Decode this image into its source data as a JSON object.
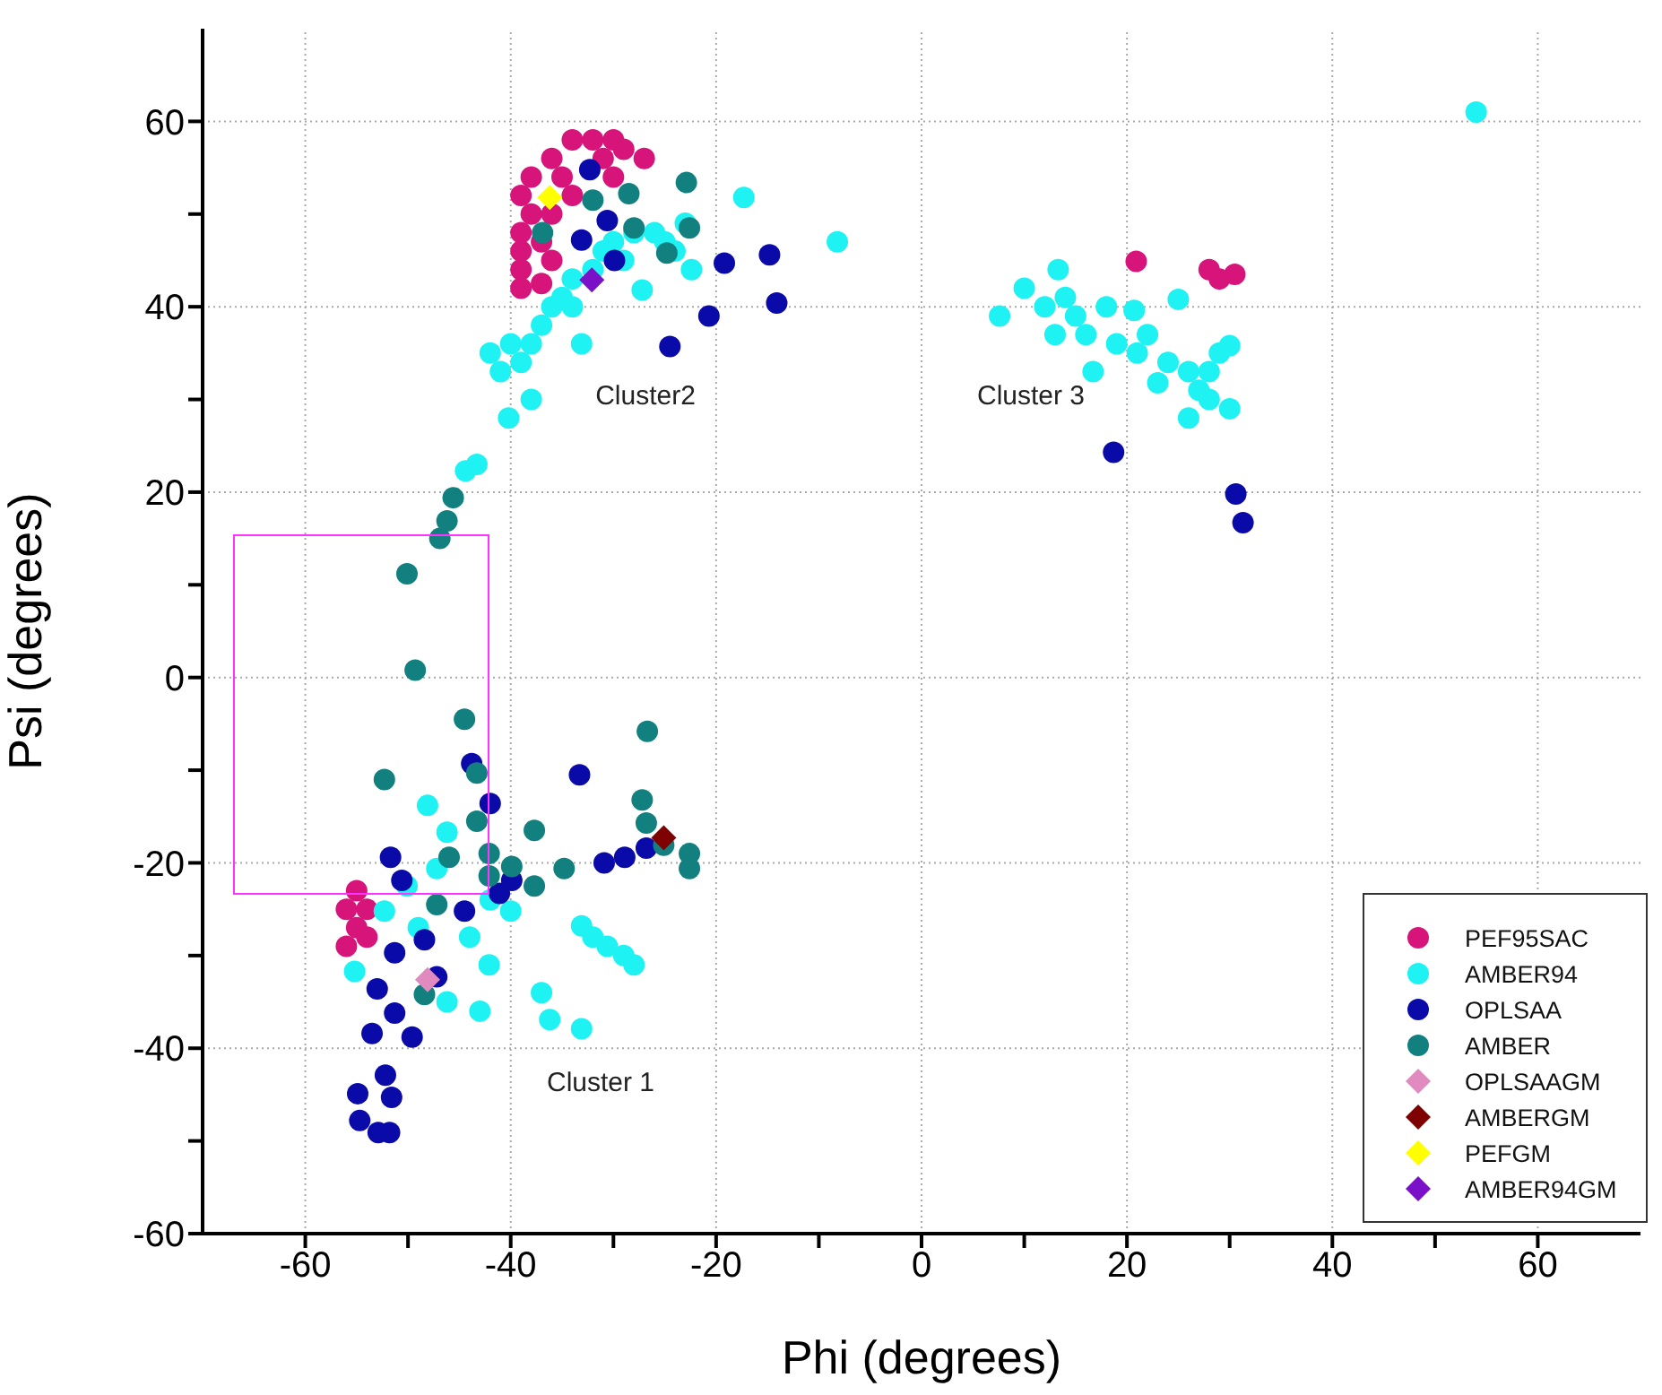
{
  "chart_data": {
    "type": "scatter",
    "xlabel": "Phi (degrees)",
    "ylabel": "Psi (degrees)",
    "xlim": [
      -70,
      70
    ],
    "ylim": [
      -60,
      70
    ],
    "xticks": [
      -60,
      {
        "value": -50,
        "label": null
      },
      -40,
      {
        "value": -30,
        "label": null
      },
      -20,
      {
        "value": -10,
        "label": null
      },
      0,
      {
        "value": 10,
        "label": null
      },
      20,
      {
        "value": 30,
        "label": null
      },
      40,
      {
        "value": 50,
        "label": null
      },
      60
    ],
    "yticks": [
      -60,
      {
        "value": -50,
        "label": null
      },
      -40,
      {
        "value": -30,
        "label": null
      },
      -20,
      {
        "value": -10,
        "label": null
      },
      0,
      {
        "value": 10,
        "label": null
      },
      20,
      {
        "value": 30,
        "label": null
      },
      40,
      {
        "value": 50,
        "label": null
      },
      60
    ],
    "grid": true,
    "legend": "bottom right",
    "marker": "circle",
    "annotations": [
      "Cluster2",
      "Cluster 3",
      "Cluster 1"
    ],
    "series": [
      {
        "name": "PEF95SAC",
        "color": "#d6147a",
        "x": [
          -34,
          -32,
          -30,
          -29,
          -27,
          -36,
          -38,
          -39,
          -38,
          -39,
          -39,
          -39,
          -39,
          -36,
          -34,
          -35,
          -30,
          -31,
          -37,
          -36,
          -37,
          -55,
          -56,
          -55,
          -56,
          -54,
          -54,
          20.9,
          28,
          30.5,
          29
        ],
        "values": [
          58,
          58,
          58,
          57,
          56,
          56,
          54,
          52,
          50,
          48,
          46,
          44,
          42,
          50,
          52,
          54,
          54,
          56,
          47,
          45,
          42.5,
          -23,
          -25,
          -27,
          -29,
          -28,
          -25,
          44.9,
          44,
          43.5,
          43
        ]
      },
      {
        "name": "AMBER94",
        "color": "#1ef2f2",
        "x": [
          -43.3,
          -44.4,
          -40.2,
          -38,
          -41,
          -42,
          -40,
          -39,
          -38,
          -37,
          -36,
          -35,
          -34,
          -34,
          -32,
          -31,
          -33.1,
          -30,
          -28,
          -26,
          -25,
          -23,
          -27.2,
          -22.4,
          -17.3,
          -8.2,
          -29,
          -24,
          7.6,
          10,
          12,
          13.3,
          14,
          15,
          16,
          13,
          16.7,
          18,
          20.7,
          19,
          21,
          22,
          23,
          24,
          25,
          26,
          26,
          27,
          28,
          29,
          30,
          30,
          28,
          54,
          -48.1,
          -46.2,
          -47.2,
          -50.1,
          -52.3,
          -55.2,
          -46.2,
          -43,
          -42.1,
          -44,
          -40,
          -42,
          -37,
          -36.2,
          -33.1,
          -33.1,
          -32,
          -30.6,
          -29,
          -28,
          -49
        ],
        "values": [
          23,
          22.3,
          28,
          30,
          33,
          35,
          36,
          34,
          36,
          38,
          40,
          41,
          40,
          43,
          44,
          46,
          36,
          47,
          48,
          48,
          47,
          49,
          41.8,
          44,
          51.8,
          47,
          45,
          46,
          39,
          42,
          40,
          44,
          41,
          39,
          37,
          37,
          33,
          40,
          39.6,
          36,
          35,
          37,
          31.8,
          34,
          40.8,
          28,
          33,
          31,
          33,
          35,
          35.8,
          29,
          30,
          61,
          -13.8,
          -16.7,
          -20.6,
          -22.5,
          -25.2,
          -31.7,
          -35,
          -36,
          -31,
          -28,
          -25.2,
          -24,
          -34,
          -36.9,
          -37.9,
          -26.8,
          -28,
          -29,
          -30,
          -31,
          -27
        ]
      },
      {
        "name": "OPLSAA",
        "color": "#0a0aa8",
        "x": [
          -32.3,
          -30.6,
          -33.1,
          -29.9,
          -19.2,
          -14.8,
          -14.1,
          -20.7,
          -24.5,
          18.7,
          30.6,
          31.3,
          -43.8,
          -33.3,
          -42,
          -51.7,
          -30.9,
          -28.9,
          -26.8,
          -48.4,
          -41.1,
          -44.5,
          -51.3,
          -47.2,
          -53,
          -51.3,
          -53.5,
          -49.6,
          -52.2,
          -54.9,
          -54.7,
          -51.8,
          -51.6,
          -52.9,
          -50.6,
          -39.9
        ],
        "values": [
          54.8,
          49.3,
          47.2,
          45,
          44.7,
          45.6,
          40.4,
          39,
          35.7,
          24.3,
          19.8,
          16.7,
          -9.3,
          -10.5,
          -13.6,
          -19.4,
          -20,
          -19.4,
          -18.4,
          -28.3,
          -23.3,
          -25.2,
          -29.7,
          -32.3,
          -33.6,
          -36.2,
          -38.4,
          -38.8,
          -42.9,
          -44.9,
          -47.8,
          -49.1,
          -45.3,
          -49.1,
          -21.9,
          -21.9
        ]
      },
      {
        "name": "AMBER",
        "color": "#138080",
        "x": [
          -50.1,
          -46.9,
          -46.2,
          -45.6,
          -36.9,
          -32,
          -28.5,
          -28,
          -22.9,
          -22.6,
          -24.8,
          -49.3,
          -44.5,
          -52.3,
          -26.7,
          -43.3,
          -43.3,
          -37.7,
          -46,
          -42.1,
          -39.9,
          -37.7,
          -34.8,
          -27.2,
          -26.8,
          -22.6,
          -22.6,
          -25.1,
          -47.2,
          -48.4,
          -42.1
        ],
        "values": [
          11.2,
          15,
          16.9,
          19.4,
          48,
          51.5,
          52.2,
          48.5,
          53.4,
          48.5,
          45.8,
          0.8,
          -4.5,
          -11,
          -5.8,
          -10.3,
          -15.5,
          -16.5,
          -19.4,
          -21.4,
          -20.4,
          -22.5,
          -20.6,
          -13.2,
          -15.7,
          -19,
          -20.6,
          -18.1,
          -24.5,
          -34.2,
          -19
        ]
      },
      {
        "name": "OPLSAAGM",
        "color": "#e08ac0",
        "marker": "diamond",
        "x": [
          -48.1
        ],
        "values": [
          -32.6
        ]
      },
      {
        "name": "AMBERGM",
        "color": "#7f0000",
        "marker": "diamond",
        "x": [
          -25.1
        ],
        "values": [
          -17.3
        ]
      },
      {
        "name": "PEFGM",
        "color": "#ffff00",
        "marker": "diamond",
        "x": [
          -36.2
        ],
        "values": [
          51.8
        ]
      },
      {
        "name": "AMBER94GM",
        "color": "#7a10c8",
        "marker": "diamond",
        "x": [
          -32.1
        ],
        "values": [
          42.9
        ]
      }
    ]
  }
}
